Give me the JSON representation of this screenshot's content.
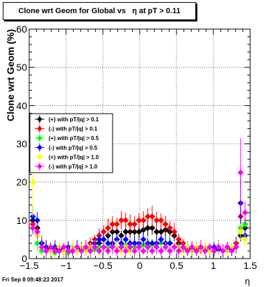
{
  "title": "Clone wrt Geom for Global vs   η at pT > 0.11",
  "footer": "Fri Sep  8 09:48:23 2017",
  "chart_data": {
    "type": "scatter",
    "title": "Clone wrt Geom for Global vs   η at pT > 0.11",
    "xlabel": "η",
    "ylabel": "Clone wrt Geom (%)",
    "xlim": [
      -1.5,
      1.5
    ],
    "ylim": [
      0,
      60
    ],
    "x_ticks": [
      -1.5,
      -1,
      -0.5,
      0,
      0.5,
      1,
      1.5
    ],
    "x_tick_labels": [
      "−1.5",
      "−1",
      "−0.5",
      "0",
      "0.5",
      "1",
      "1.5"
    ],
    "y_ticks": [
      0,
      10,
      20,
      30,
      40,
      50,
      60
    ],
    "y_tick_labels": [
      "0",
      "10",
      "20",
      "30",
      "40",
      "50",
      "60"
    ],
    "grid": true,
    "legend_position": "left-middle",
    "series": [
      {
        "name": "(+) with pT/|q| > 0.1",
        "color": "#000000",
        "x": [
          -1.45,
          -1.39,
          -1.33,
          -1.27,
          -1.21,
          -1.15,
          -1.09,
          -1.03,
          -0.97,
          -0.91,
          -0.85,
          -0.79,
          -0.73,
          -0.67,
          -0.61,
          -0.55,
          -0.49,
          -0.43,
          -0.37,
          -0.31,
          -0.25,
          -0.19,
          -0.13,
          -0.07,
          -0.01,
          0.05,
          0.11,
          0.17,
          0.23,
          0.29,
          0.35,
          0.41,
          0.47,
          0.53,
          0.59,
          0.65,
          0.71,
          0.77,
          0.83,
          0.89,
          0.95,
          1.01,
          1.07,
          1.13,
          1.19,
          1.25,
          1.31,
          1.37,
          1.43
        ],
        "y": [
          10,
          8,
          4,
          3,
          2.5,
          2,
          2.5,
          2,
          2,
          3,
          2,
          2.5,
          3,
          2,
          3,
          4,
          5,
          6,
          7,
          7,
          6,
          7,
          7,
          7,
          7,
          7.5,
          8,
          8,
          7,
          7,
          7.5,
          7,
          6,
          4,
          3,
          3,
          2.5,
          2,
          3,
          2.5,
          2,
          2,
          2.5,
          2,
          3,
          2.5,
          4,
          6,
          8
        ]
      },
      {
        "name": "(-) with pT/|q| > 0.1",
        "color": "#ff0000",
        "x": [
          -1.45,
          -1.39,
          -1.33,
          -1.27,
          -1.21,
          -1.15,
          -1.09,
          -1.03,
          -0.97,
          -0.91,
          -0.85,
          -0.79,
          -0.73,
          -0.67,
          -0.61,
          -0.55,
          -0.49,
          -0.43,
          -0.37,
          -0.31,
          -0.25,
          -0.19,
          -0.13,
          -0.07,
          -0.01,
          0.05,
          0.11,
          0.17,
          0.23,
          0.29,
          0.35,
          0.41,
          0.47,
          0.53,
          0.59,
          0.65,
          0.71,
          0.77,
          0.83,
          0.89,
          0.95,
          1.01,
          1.07,
          1.13,
          1.19,
          1.25,
          1.31,
          1.37,
          1.43
        ],
        "y": [
          9,
          7,
          4,
          3,
          2,
          2.5,
          2,
          2,
          3,
          2,
          3,
          3,
          3,
          4,
          5,
          6,
          7,
          8,
          9,
          9,
          10,
          10,
          9,
          9,
          10,
          10,
          11,
          11,
          10,
          10,
          9,
          8,
          7,
          5,
          4,
          3,
          3,
          2.5,
          3,
          2,
          2,
          2,
          3,
          2,
          3,
          2.5,
          4,
          11,
          9
        ]
      },
      {
        "name": "(+) with pT/|q| > 0.5",
        "color": "#00ff00",
        "x": [
          -1.45,
          -1.39,
          -1.33,
          -1.27,
          -1.21,
          -1.15,
          -1.09,
          -1.03,
          -0.97,
          -0.91,
          -0.85,
          -0.79,
          -0.73,
          -0.67,
          -0.61,
          -0.55,
          -0.49,
          -0.43,
          -0.37,
          -0.31,
          -0.25,
          -0.19,
          -0.13,
          -0.07,
          -0.01,
          0.05,
          0.11,
          0.17,
          0.23,
          0.29,
          0.35,
          0.41,
          0.47,
          0.53,
          0.59,
          0.65,
          0.71,
          0.77,
          0.83,
          0.89,
          0.95,
          1.01,
          1.07,
          1.13,
          1.19,
          1.25,
          1.31,
          1.37,
          1.43
        ],
        "y": [
          8,
          4,
          2,
          2,
          2,
          1.5,
          2,
          2,
          1.5,
          2,
          2,
          2,
          2.5,
          2,
          2.5,
          3,
          3,
          3,
          3.5,
          3,
          3,
          3.5,
          3,
          3,
          3,
          3.5,
          3,
          3.5,
          3,
          4,
          3,
          4,
          3,
          3,
          3,
          2.5,
          2,
          3,
          2,
          2.5,
          2,
          2,
          3,
          2,
          2.5,
          2,
          3,
          8,
          9
        ]
      },
      {
        "name": "(-) with pT/|q| > 0.5",
        "color": "#0000ff",
        "x": [
          -1.45,
          -1.39,
          -1.33,
          -1.27,
          -1.21,
          -1.15,
          -1.09,
          -1.03,
          -0.97,
          -0.91,
          -0.85,
          -0.79,
          -0.73,
          -0.67,
          -0.61,
          -0.55,
          -0.49,
          -0.43,
          -0.37,
          -0.31,
          -0.25,
          -0.19,
          -0.13,
          -0.07,
          -0.01,
          0.05,
          0.11,
          0.17,
          0.23,
          0.29,
          0.35,
          0.41,
          0.47,
          0.53,
          0.59,
          0.65,
          0.71,
          0.77,
          0.83,
          0.89,
          0.95,
          1.01,
          1.07,
          1.13,
          1.19,
          1.25,
          1.31,
          1.37,
          1.43
        ],
        "y": [
          11,
          10,
          4,
          3,
          2,
          3,
          2.5,
          2,
          3,
          2,
          3,
          3,
          2,
          3,
          4,
          5,
          5,
          4,
          4,
          5,
          4,
          5,
          4,
          4,
          4,
          5,
          4,
          4,
          4,
          5,
          4,
          4,
          3,
          3,
          3,
          2.5,
          3,
          2,
          3,
          2,
          2,
          3,
          2.5,
          2,
          3,
          2.5,
          3,
          14.5,
          6
        ]
      },
      {
        "name": "(+) with pT/|q| > 1.0",
        "color": "#ffff00",
        "x": [
          -1.45,
          -1.39,
          -1.33,
          -1.27,
          -1.21,
          -1.15,
          -1.09,
          -1.03,
          -0.97,
          -0.91,
          -0.85,
          -0.79,
          -0.73,
          -0.67,
          -0.61,
          -0.55,
          -0.49,
          -0.43,
          -0.37,
          -0.31,
          -0.25,
          -0.19,
          -0.13,
          -0.07,
          -0.01,
          0.05,
          0.11,
          0.17,
          0.23,
          0.29,
          0.35,
          0.41,
          0.47,
          0.53,
          0.59,
          0.65,
          0.71,
          0.77,
          0.83,
          0.89,
          0.95,
          1.01,
          1.07,
          1.13,
          1.19,
          1.25,
          1.31,
          1.37,
          1.43
        ],
        "y": [
          20,
          6,
          3,
          2,
          2,
          2,
          3,
          2,
          2,
          3,
          2,
          3,
          2,
          3,
          3,
          2,
          3,
          2,
          3,
          3,
          2,
          3,
          2,
          2,
          3,
          2,
          3,
          2,
          3,
          2,
          3,
          2,
          3,
          3,
          2,
          3,
          2,
          3,
          2,
          3,
          2,
          2,
          3,
          2,
          2,
          3,
          3,
          7,
          5
        ]
      },
      {
        "name": "(-) with pT/|q| > 1.0",
        "color": "#ff00ff",
        "x": [
          -1.45,
          -1.39,
          -1.33,
          -1.27,
          -1.21,
          -1.15,
          -1.09,
          -1.03,
          -0.97,
          -0.91,
          -0.85,
          -0.79,
          -0.73,
          -0.67,
          -0.61,
          -0.55,
          -0.49,
          -0.43,
          -0.37,
          -0.31,
          -0.25,
          -0.19,
          -0.13,
          -0.07,
          -0.01,
          0.05,
          0.11,
          0.17,
          0.23,
          0.29,
          0.35,
          0.41,
          0.47,
          0.53,
          0.59,
          0.65,
          0.71,
          0.77,
          0.83,
          0.89,
          0.95,
          1.01,
          1.07,
          1.13,
          1.19,
          1.25,
          1.31,
          1.37,
          1.43
        ],
        "y": [
          8,
          7,
          3,
          2,
          3,
          2,
          2,
          3,
          2,
          2,
          3,
          2,
          3,
          2,
          3,
          2,
          3,
          2,
          3,
          2,
          3,
          2,
          3,
          2,
          3,
          2,
          3,
          2,
          3,
          2,
          3,
          2,
          3,
          2,
          3,
          2,
          3,
          2,
          3,
          2,
          3,
          2,
          3,
          2,
          3,
          2,
          3,
          22.5,
          12
        ]
      }
    ]
  }
}
